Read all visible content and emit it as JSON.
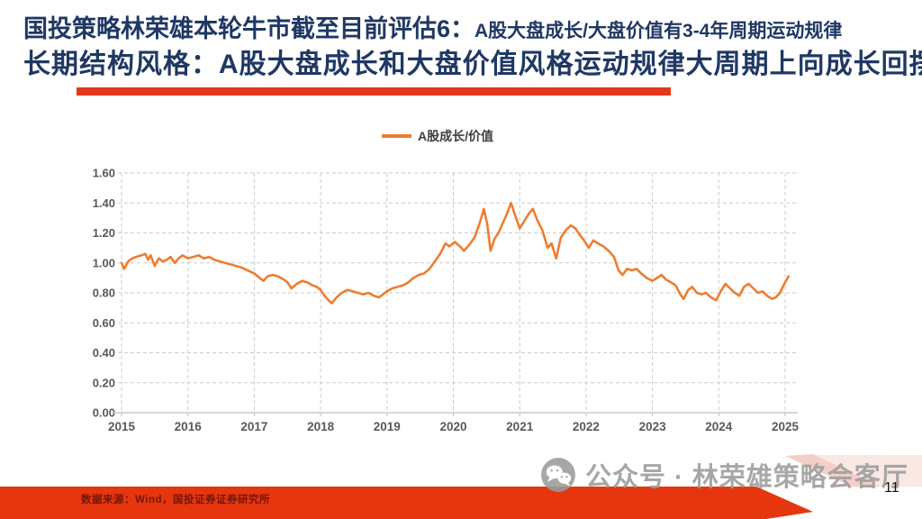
{
  "slide": {
    "title_line1_main": "国投策略林荣雄本轮牛市截至目前评估6：",
    "title_line1_sub": "A股大盘成长/大盘价值有3-4年周期运动规律",
    "title_line2": "长期结构风格：A股大盘成长和大盘价值风格运动规律大周期上向成长回摆",
    "source_text": "数据来源：Wind，国投证券证券研究所",
    "watermark_text": "公众号 · 林荣雄策略会客厅",
    "watermark_icon": "wechat-icon",
    "page_number": "11"
  },
  "colors": {
    "title_navy": "#1F3864",
    "accent_red": "#E2371B",
    "footer_band_red": "#E6360E",
    "footer_stripe_pink": "#F3CFC6",
    "footer_wash_pink": "#FAE8E3",
    "line_orange": "#ED7D31",
    "grid_gray": "#CBCBCB",
    "axis_label_gray": "#595959",
    "watermark_gray": "#9C9C9C",
    "source_text_dark": "#74150B"
  },
  "chart_data": {
    "type": "line",
    "title": "",
    "xlabel": "",
    "ylabel": "",
    "grid": "dashed-both-axes",
    "legend_position": "top-center",
    "legend": [
      {
        "label": "A股成长/价值",
        "color": "#ED7D31"
      }
    ],
    "x_ticks": [
      2015,
      2016,
      2017,
      2018,
      2019,
      2020,
      2021,
      2022,
      2023,
      2024,
      2025
    ],
    "y_ticks": [
      0.0,
      0.2,
      0.4,
      0.6,
      0.8,
      1.0,
      1.2,
      1.4,
      1.6
    ],
    "ylim": [
      0.0,
      1.6
    ],
    "series": [
      {
        "name": "A股成长/价值",
        "color": "#ED7D31",
        "points": [
          [
            2015.0,
            1.0
          ],
          [
            2015.04,
            0.96
          ],
          [
            2015.1,
            1.01
          ],
          [
            2015.16,
            1.03
          ],
          [
            2015.22,
            1.04
          ],
          [
            2015.3,
            1.05
          ],
          [
            2015.36,
            1.06
          ],
          [
            2015.4,
            1.02
          ],
          [
            2015.44,
            1.05
          ],
          [
            2015.5,
            0.98
          ],
          [
            2015.56,
            1.03
          ],
          [
            2015.62,
            1.01
          ],
          [
            2015.68,
            1.02
          ],
          [
            2015.74,
            1.04
          ],
          [
            2015.8,
            1.0
          ],
          [
            2015.86,
            1.03
          ],
          [
            2015.92,
            1.05
          ],
          [
            2016.0,
            1.03
          ],
          [
            2016.08,
            1.04
          ],
          [
            2016.16,
            1.05
          ],
          [
            2016.24,
            1.03
          ],
          [
            2016.32,
            1.04
          ],
          [
            2016.4,
            1.02
          ],
          [
            2016.48,
            1.01
          ],
          [
            2016.56,
            1.0
          ],
          [
            2016.64,
            0.99
          ],
          [
            2016.72,
            0.98
          ],
          [
            2016.8,
            0.97
          ],
          [
            2016.9,
            0.95
          ],
          [
            2017.0,
            0.93
          ],
          [
            2017.08,
            0.9
          ],
          [
            2017.14,
            0.88
          ],
          [
            2017.2,
            0.91
          ],
          [
            2017.28,
            0.92
          ],
          [
            2017.36,
            0.91
          ],
          [
            2017.44,
            0.89
          ],
          [
            2017.5,
            0.87
          ],
          [
            2017.56,
            0.83
          ],
          [
            2017.64,
            0.86
          ],
          [
            2017.72,
            0.88
          ],
          [
            2017.8,
            0.87
          ],
          [
            2017.88,
            0.85
          ],
          [
            2017.94,
            0.84
          ],
          [
            2018.0,
            0.82
          ],
          [
            2018.06,
            0.78
          ],
          [
            2018.12,
            0.75
          ],
          [
            2018.17,
            0.73
          ],
          [
            2018.24,
            0.77
          ],
          [
            2018.32,
            0.8
          ],
          [
            2018.4,
            0.82
          ],
          [
            2018.48,
            0.81
          ],
          [
            2018.56,
            0.8
          ],
          [
            2018.64,
            0.79
          ],
          [
            2018.72,
            0.8
          ],
          [
            2018.8,
            0.78
          ],
          [
            2018.88,
            0.77
          ],
          [
            2018.94,
            0.79
          ],
          [
            2019.0,
            0.81
          ],
          [
            2019.08,
            0.83
          ],
          [
            2019.16,
            0.84
          ],
          [
            2019.24,
            0.85
          ],
          [
            2019.32,
            0.87
          ],
          [
            2019.4,
            0.9
          ],
          [
            2019.48,
            0.92
          ],
          [
            2019.56,
            0.93
          ],
          [
            2019.64,
            0.96
          ],
          [
            2019.72,
            1.01
          ],
          [
            2019.8,
            1.06
          ],
          [
            2019.88,
            1.13
          ],
          [
            2019.94,
            1.11
          ],
          [
            2020.02,
            1.14
          ],
          [
            2020.1,
            1.11
          ],
          [
            2020.16,
            1.08
          ],
          [
            2020.24,
            1.12
          ],
          [
            2020.32,
            1.17
          ],
          [
            2020.4,
            1.27
          ],
          [
            2020.46,
            1.36
          ],
          [
            2020.51,
            1.26
          ],
          [
            2020.56,
            1.08
          ],
          [
            2020.62,
            1.16
          ],
          [
            2020.68,
            1.2
          ],
          [
            2020.74,
            1.26
          ],
          [
            2020.8,
            1.32
          ],
          [
            2020.87,
            1.4
          ],
          [
            2020.93,
            1.32
          ],
          [
            2021.0,
            1.23
          ],
          [
            2021.07,
            1.28
          ],
          [
            2021.14,
            1.33
          ],
          [
            2021.2,
            1.36
          ],
          [
            2021.27,
            1.28
          ],
          [
            2021.34,
            1.22
          ],
          [
            2021.42,
            1.1
          ],
          [
            2021.48,
            1.13
          ],
          [
            2021.55,
            1.03
          ],
          [
            2021.62,
            1.17
          ],
          [
            2021.7,
            1.22
          ],
          [
            2021.77,
            1.25
          ],
          [
            2021.84,
            1.23
          ],
          [
            2021.9,
            1.19
          ],
          [
            2021.97,
            1.15
          ],
          [
            2022.04,
            1.1
          ],
          [
            2022.11,
            1.15
          ],
          [
            2022.18,
            1.13
          ],
          [
            2022.26,
            1.11
          ],
          [
            2022.34,
            1.08
          ],
          [
            2022.42,
            1.04
          ],
          [
            2022.49,
            0.95
          ],
          [
            2022.55,
            0.92
          ],
          [
            2022.62,
            0.96
          ],
          [
            2022.69,
            0.95
          ],
          [
            2022.76,
            0.96
          ],
          [
            2022.83,
            0.93
          ],
          [
            2022.91,
            0.9
          ],
          [
            2023.0,
            0.88
          ],
          [
            2023.07,
            0.9
          ],
          [
            2023.14,
            0.92
          ],
          [
            2023.2,
            0.89
          ],
          [
            2023.28,
            0.87
          ],
          [
            2023.35,
            0.85
          ],
          [
            2023.42,
            0.79
          ],
          [
            2023.47,
            0.76
          ],
          [
            2023.54,
            0.82
          ],
          [
            2023.6,
            0.84
          ],
          [
            2023.67,
            0.8
          ],
          [
            2023.74,
            0.79
          ],
          [
            2023.81,
            0.8
          ],
          [
            2023.88,
            0.77
          ],
          [
            2023.96,
            0.75
          ],
          [
            2024.03,
            0.81
          ],
          [
            2024.1,
            0.86
          ],
          [
            2024.17,
            0.83
          ],
          [
            2024.24,
            0.8
          ],
          [
            2024.31,
            0.78
          ],
          [
            2024.38,
            0.84
          ],
          [
            2024.45,
            0.86
          ],
          [
            2024.52,
            0.83
          ],
          [
            2024.59,
            0.8
          ],
          [
            2024.66,
            0.81
          ],
          [
            2024.73,
            0.78
          ],
          [
            2024.8,
            0.76
          ],
          [
            2024.86,
            0.77
          ],
          [
            2024.92,
            0.8
          ],
          [
            2025.0,
            0.87
          ],
          [
            2025.05,
            0.91
          ]
        ]
      }
    ]
  }
}
